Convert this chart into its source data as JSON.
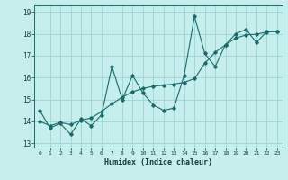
{
  "title": "",
  "xlabel": "Humidex (Indice chaleur)",
  "ylabel": "",
  "bg_color": "#c5eeed",
  "grid_color": "#9dd4d4",
  "line_color": "#1a6b6b",
  "xlim": [
    -0.5,
    23.5
  ],
  "ylim": [
    12.8,
    19.3
  ],
  "yticks": [
    13,
    14,
    15,
    16,
    17,
    18,
    19
  ],
  "xticks": [
    0,
    1,
    2,
    3,
    4,
    5,
    6,
    7,
    8,
    9,
    10,
    11,
    12,
    13,
    14,
    15,
    16,
    17,
    18,
    19,
    20,
    21,
    22,
    23
  ],
  "zigzag_x": [
    0,
    1,
    2,
    3,
    4,
    5,
    6,
    7,
    8,
    9,
    10,
    11,
    12,
    13,
    14,
    15,
    16,
    17,
    18,
    19,
    20,
    21,
    22,
    23
  ],
  "zigzag_y": [
    14.5,
    13.7,
    13.9,
    13.4,
    14.1,
    13.8,
    14.3,
    16.5,
    15.0,
    16.1,
    15.3,
    14.75,
    14.5,
    14.6,
    16.1,
    18.8,
    17.1,
    16.5,
    17.5,
    18.0,
    18.2,
    17.6,
    18.1,
    18.1
  ],
  "trend_x": [
    0,
    1,
    2,
    3,
    4,
    5,
    6,
    7,
    8,
    9,
    10,
    11,
    12,
    13,
    14,
    15,
    16,
    17,
    18,
    19,
    20,
    21,
    22,
    23
  ],
  "trend_y": [
    14.0,
    13.8,
    13.95,
    13.85,
    14.05,
    14.15,
    14.45,
    14.8,
    15.1,
    15.35,
    15.5,
    15.6,
    15.65,
    15.7,
    15.78,
    15.95,
    16.65,
    17.15,
    17.5,
    17.8,
    17.95,
    17.98,
    18.08,
    18.12
  ]
}
